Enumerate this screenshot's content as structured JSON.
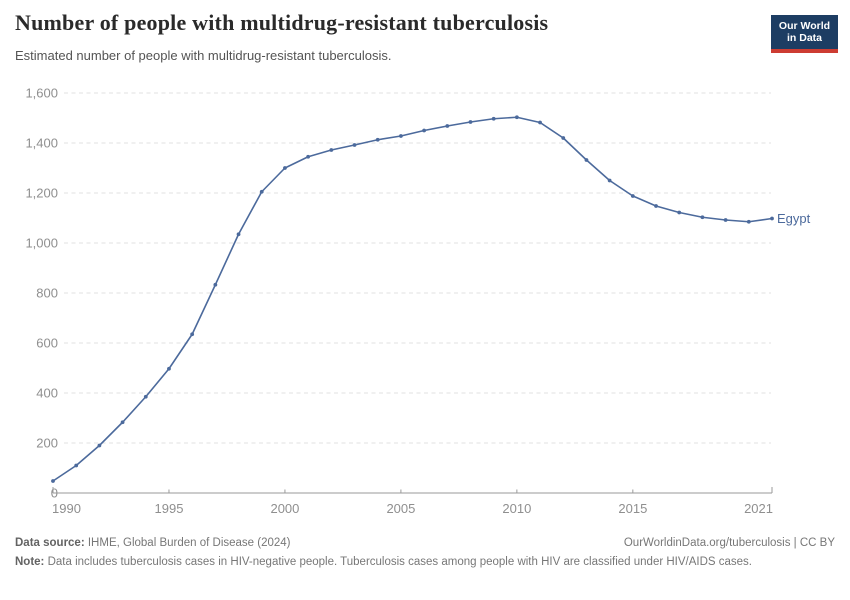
{
  "header": {
    "title": "Number of people with multidrug-resistant tuberculosis",
    "subtitle": "Estimated number of people with multidrug-resistant tuberculosis.",
    "logo": {
      "line1": "Our World",
      "line2": "in Data",
      "bg_color": "#1d3d63",
      "stripe_color": "#cd3c32"
    }
  },
  "chart_data": {
    "type": "line",
    "title": "Number of people with multidrug-resistant tuberculosis",
    "subtitle": "Estimated number of people with multidrug-resistant tuberculosis.",
    "xlabel": "",
    "ylabel": "",
    "xlim": [
      1990,
      2021
    ],
    "ylim": [
      0,
      1600
    ],
    "grid": "horizontal-dashed",
    "legend_position": "end-of-line-label",
    "x_ticks": [
      1990,
      1995,
      2000,
      2005,
      2010,
      2015,
      2021
    ],
    "x_tick_labels": [
      "1990",
      "1995",
      "2000",
      "2005",
      "2010",
      "2015",
      "2021"
    ],
    "y_ticks": [
      0,
      200,
      400,
      600,
      800,
      1000,
      1200,
      1400,
      1600
    ],
    "y_tick_labels": [
      "0",
      "200",
      "400",
      "600",
      "800",
      "1,000",
      "1,200",
      "1,400",
      "1,600"
    ],
    "series": [
      {
        "name": "Egypt",
        "color": "#4c6a9c",
        "x": [
          1990,
          1991,
          1992,
          1993,
          1994,
          1995,
          1996,
          1997,
          1998,
          1999,
          2000,
          2001,
          2002,
          2003,
          2004,
          2005,
          2006,
          2007,
          2008,
          2009,
          2010,
          2011,
          2012,
          2013,
          2014,
          2015,
          2016,
          2017,
          2018,
          2019,
          2020,
          2021
        ],
        "values": [
          48,
          110,
          190,
          283,
          385,
          497,
          635,
          833,
          1035,
          1205,
          1300,
          1345,
          1372,
          1392,
          1413,
          1428,
          1450,
          1468,
          1484,
          1497,
          1503,
          1482,
          1420,
          1332,
          1250,
          1188,
          1148,
          1122,
          1103,
          1092,
          1085,
          1098
        ]
      }
    ],
    "colors": {
      "grid": "#e0e0e0",
      "axis": "#9a9a9a",
      "tick_label": "#8f8f8f"
    }
  },
  "footer": {
    "source_label": "Data source:",
    "source_value": " IHME, Global Burden of Disease (2024)",
    "credit": "OurWorldinData.org/tuberculosis | CC BY",
    "note_label": "Note:",
    "note_value": " Data includes tuberculosis cases in HIV-negative people. Tuberculosis cases among people with HIV are classified under HIV/AIDS cases."
  }
}
